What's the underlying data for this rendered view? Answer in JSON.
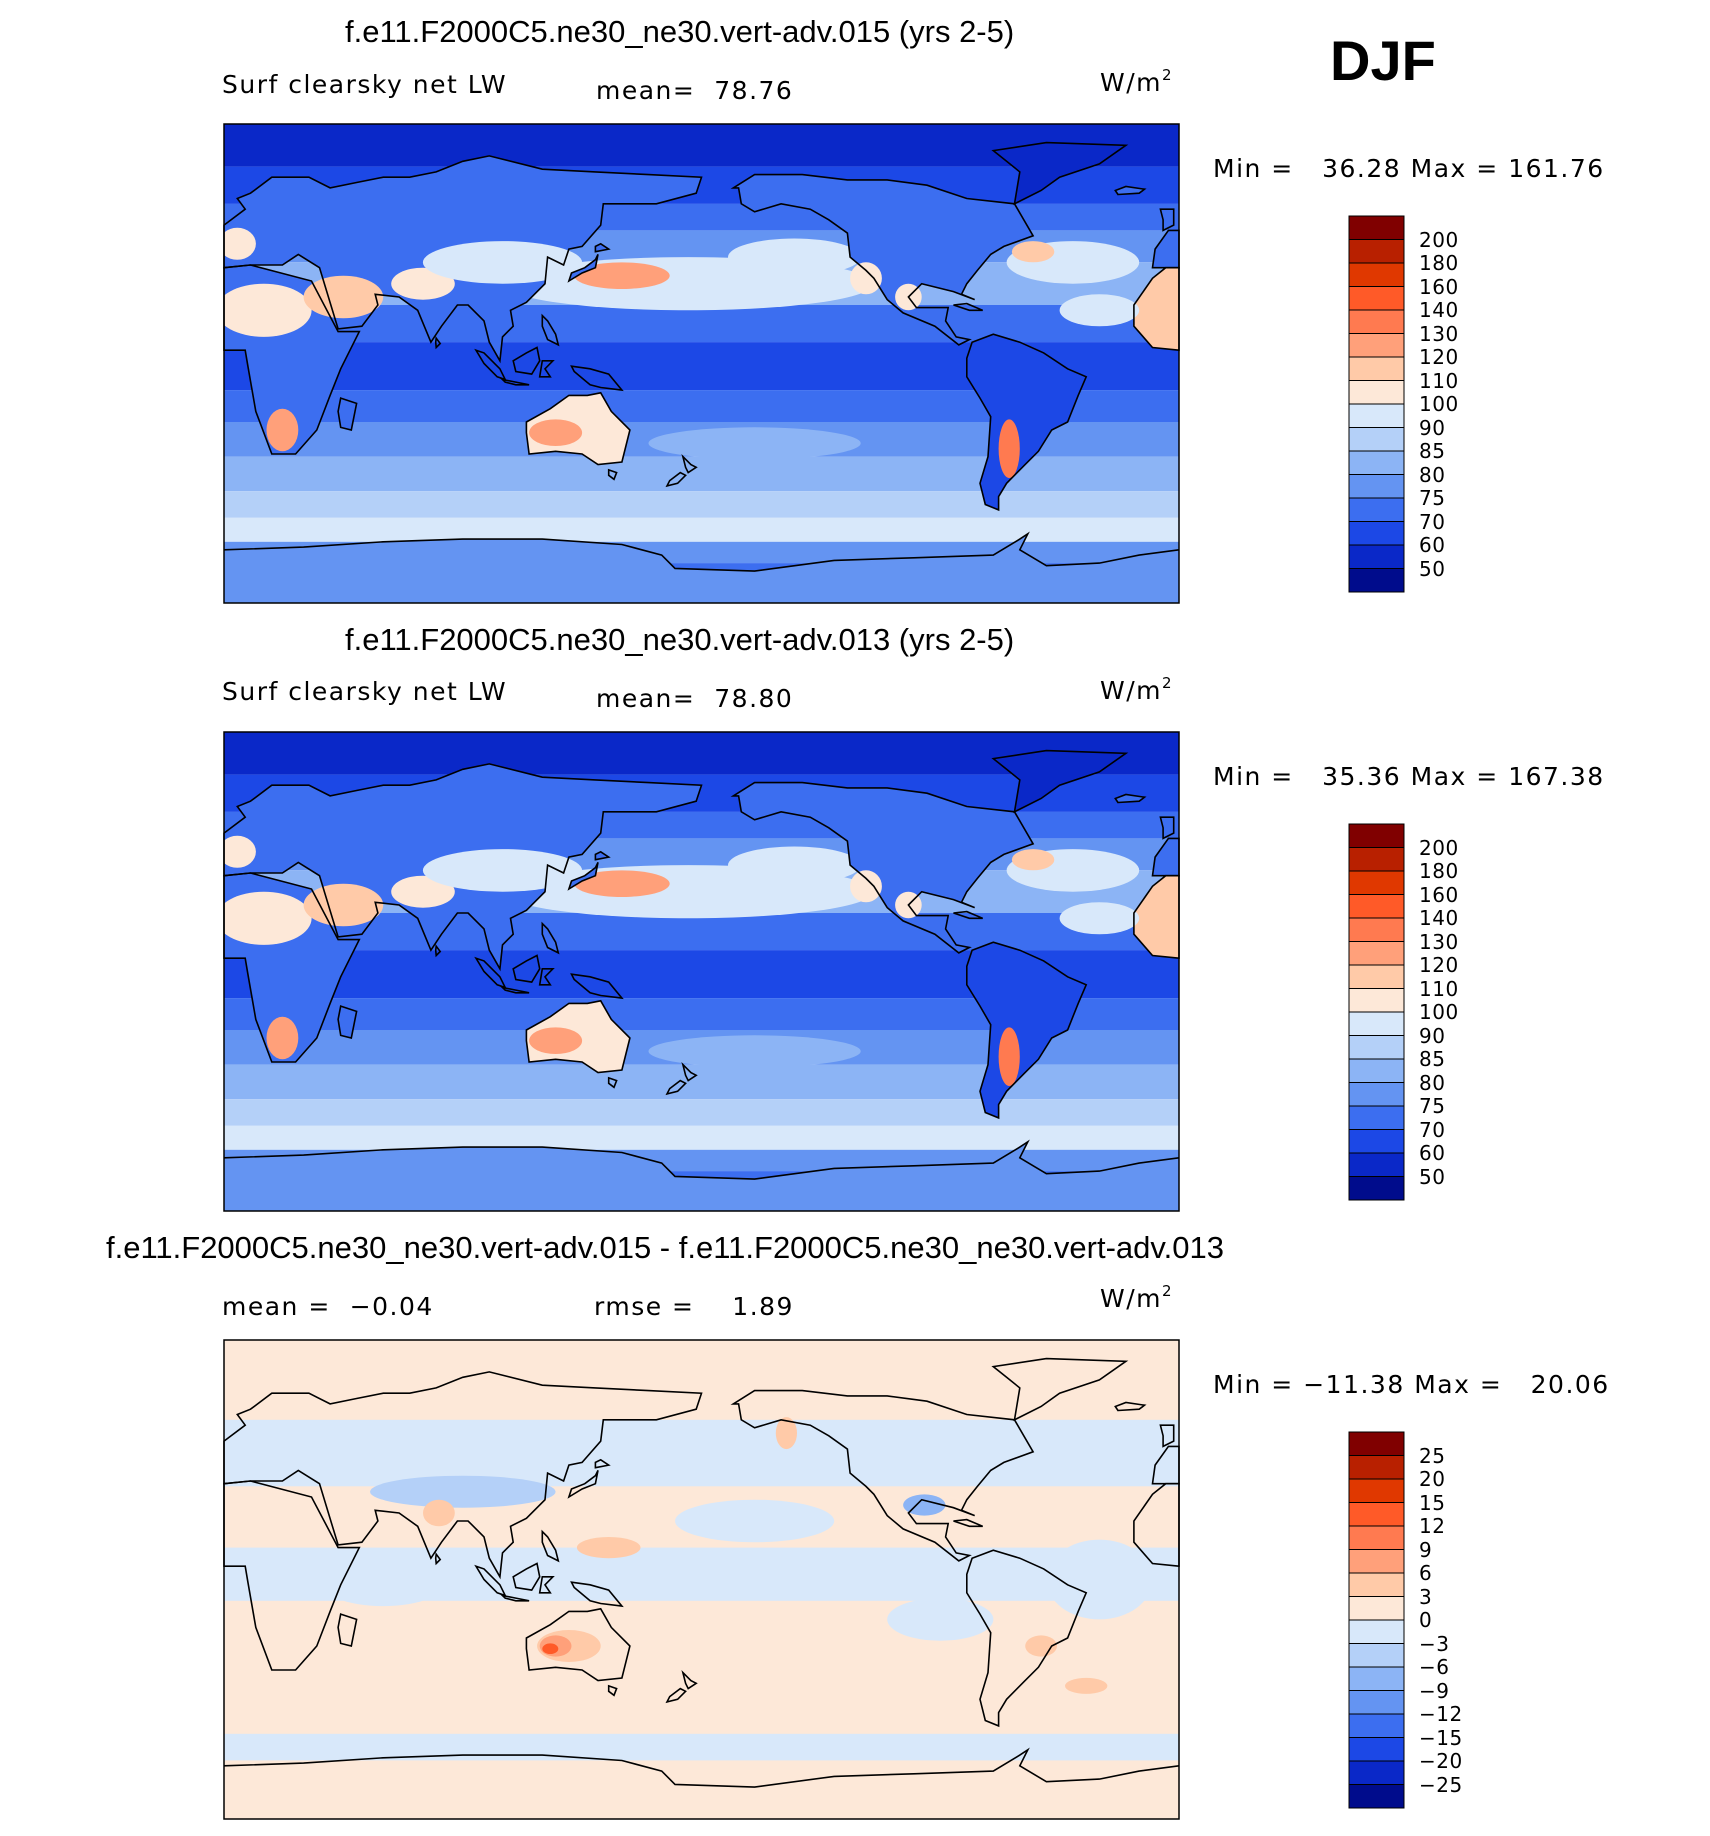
{
  "season": "DJF",
  "colors": {
    "coast": "#000000",
    "frame": "#000000"
  },
  "chart_data": [
    {
      "type": "heatmap",
      "panel": "top",
      "title": "f.e11.F2000C5.ne30_ne30.vert-adv.015 (yrs 2-5)",
      "variable": "Surf clearsky net LW",
      "stat1_label": "mean=",
      "stat1_value": "78.76",
      "units": "W/m",
      "units_exp": "2",
      "min_label": "Min =",
      "min": "36.28",
      "max_label": "Max =",
      "max": "161.76",
      "xlim": [
        0,
        360
      ],
      "ylim": [
        -90,
        90
      ],
      "field": "absolute",
      "levels": [
        "200",
        "180",
        "160",
        "140",
        "130",
        "120",
        "110",
        "100",
        "90",
        "85",
        "80",
        "75",
        "70",
        "60",
        "50"
      ],
      "colors": [
        "#800000",
        "#b82000",
        "#e03800",
        "#ff5a28",
        "#ff7a50",
        "#ffa07a",
        "#ffcaa8",
        "#fde8d8",
        "#d8e8fa",
        "#b4d0f8",
        "#8cb4f5",
        "#6494f2",
        "#3c6ef0",
        "#1c48e6",
        "#0a28c8",
        "#000c8c"
      ]
    },
    {
      "type": "heatmap",
      "panel": "middle",
      "title": "f.e11.F2000C5.ne30_ne30.vert-adv.013 (yrs 2-5)",
      "variable": "Surf clearsky net LW",
      "stat1_label": "mean=",
      "stat1_value": "78.80",
      "units": "W/m",
      "units_exp": "2",
      "min_label": "Min =",
      "min": "35.36",
      "max_label": "Max =",
      "max": "167.38",
      "xlim": [
        0,
        360
      ],
      "ylim": [
        -90,
        90
      ],
      "field": "absolute",
      "levels": [
        "200",
        "180",
        "160",
        "140",
        "130",
        "120",
        "110",
        "100",
        "90",
        "85",
        "80",
        "75",
        "70",
        "60",
        "50"
      ],
      "colors": [
        "#800000",
        "#b82000",
        "#e03800",
        "#ff5a28",
        "#ff7a50",
        "#ffa07a",
        "#ffcaa8",
        "#fde8d8",
        "#d8e8fa",
        "#b4d0f8",
        "#8cb4f5",
        "#6494f2",
        "#3c6ef0",
        "#1c48e6",
        "#0a28c8",
        "#000c8c"
      ]
    },
    {
      "type": "heatmap",
      "panel": "bottom",
      "title": "f.e11.F2000C5.ne30_ne30.vert-adv.015 - f.e11.F2000C5.ne30_ne30.vert-adv.013",
      "variable": "",
      "stat1_label": "mean =",
      "stat1_value": "−0.04",
      "stat2_label": "rmse =",
      "stat2_value": "1.89",
      "units": "W/m",
      "units_exp": "2",
      "min_label": "Min =",
      "min": "−11.38",
      "max_label": "Max =",
      "max": "20.06",
      "xlim": [
        0,
        360
      ],
      "ylim": [
        -90,
        90
      ],
      "field": "difference",
      "levels": [
        "25",
        "20",
        "15",
        "12",
        "9",
        "6",
        "3",
        "0",
        "−3",
        "−6",
        "−9",
        "−12",
        "−15",
        "−20",
        "−25"
      ],
      "colors": [
        "#800000",
        "#b82000",
        "#e03800",
        "#ff5a28",
        "#ff7a50",
        "#ffa07a",
        "#ffcaa8",
        "#fde8d8",
        "#d8e8fa",
        "#b4d0f8",
        "#8cb4f5",
        "#6494f2",
        "#3c6ef0",
        "#1c48e6",
        "#0a28c8",
        "#000c8c"
      ]
    }
  ]
}
